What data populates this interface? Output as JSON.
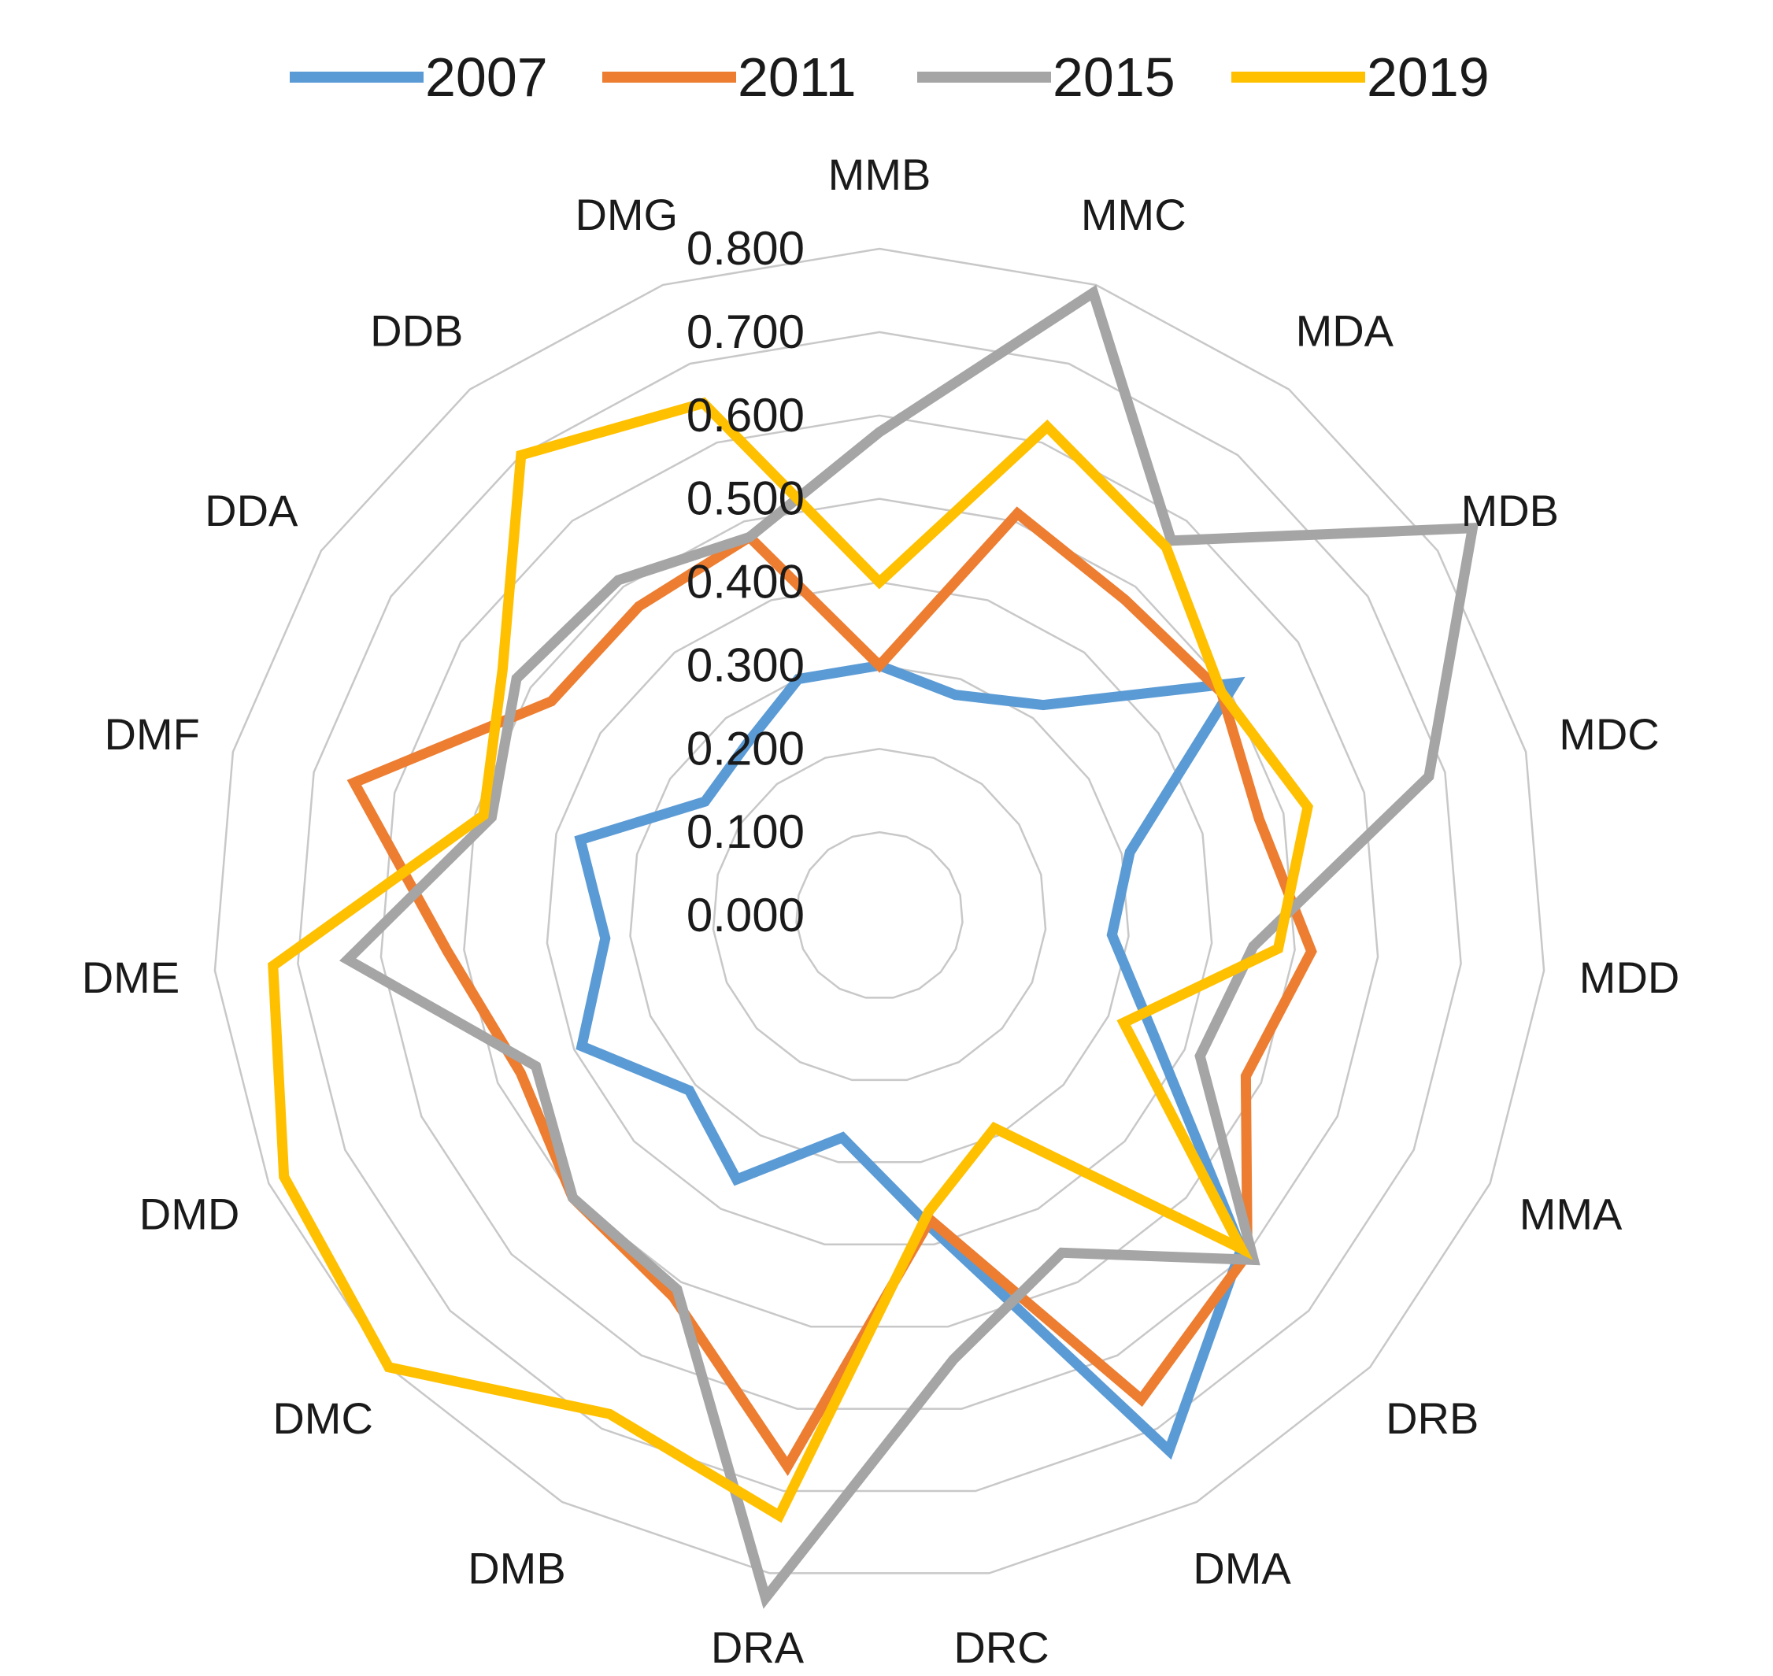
{
  "chart_data": {
    "type": "radar",
    "title": "",
    "categories": [
      "MMB",
      "MMC",
      "MDA",
      "MDB",
      "MDC",
      "MDD",
      "MMA",
      "DRB",
      "DMA",
      "DRC",
      "DRA",
      "DMB",
      "DMC",
      "DMD",
      "DME",
      "DMF",
      "DDA",
      "DDB",
      "DMG"
    ],
    "rlim": [
      0,
      0.8
    ],
    "ticks": [
      "0.000",
      "0.100",
      "0.200",
      "0.300",
      "0.400",
      "0.500",
      "0.600",
      "0.700",
      "0.800"
    ],
    "grid": true,
    "legend_position": "top",
    "series": [
      {
        "name": "2007",
        "color": "#5B9BD5",
        "values": [
          0.3,
          0.28,
          0.32,
          0.51,
          0.31,
          0.28,
          0.36,
          0.59,
          0.73,
          0.38,
          0.27,
          0.36,
          0.31,
          0.39,
          0.33,
          0.37,
          0.25,
          0.26,
          0.3
        ]
      },
      {
        "name": "2011",
        "color": "#ED7D31",
        "values": [
          0.3,
          0.51,
          0.48,
          0.49,
          0.47,
          0.52,
          0.48,
          0.6,
          0.66,
          0.37,
          0.67,
          0.52,
          0.5,
          0.47,
          0.52,
          0.65,
          0.47,
          0.47,
          0.48
        ]
      },
      {
        "name": "2015",
        "color": "#A5A5A5",
        "values": [
          0.58,
          0.79,
          0.57,
          0.85,
          0.68,
          0.45,
          0.42,
          0.61,
          0.46,
          0.54,
          0.83,
          0.51,
          0.5,
          0.45,
          0.64,
          0.48,
          0.52,
          0.51,
          0.48
        ]
      },
      {
        "name": "2019",
        "color": "#FFC000",
        "values": [
          0.4,
          0.62,
          0.56,
          0.49,
          0.53,
          0.48,
          0.32,
          0.59,
          0.29,
          0.36,
          0.73,
          0.68,
          0.8,
          0.78,
          0.73,
          0.49,
          0.54,
          0.7,
          0.65
        ]
      }
    ]
  }
}
